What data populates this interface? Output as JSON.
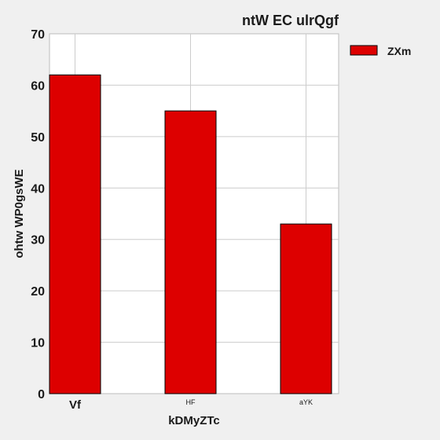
{
  "chart_data": {
    "type": "bar",
    "title": "ntW EC ulrQgf",
    "xlabel": "kDMyZTc",
    "ylabel": "ohtw WP0gsWE",
    "categories": [
      "Vf",
      "HF",
      "aYK"
    ],
    "series": [
      {
        "name": "ZXm",
        "values": [
          62,
          55,
          33
        ]
      }
    ],
    "ylim": [
      0,
      70
    ],
    "yticks": [
      0,
      10,
      20,
      30,
      40,
      50,
      60,
      70
    ],
    "grid": true,
    "legend_position": "top-right",
    "colors": {
      "bar_fill": "#dd0000",
      "bar_stroke": "#000000",
      "plot_background": "#ffffff",
      "figure_background": "#f0f0f0",
      "grid": "#cccccc"
    }
  }
}
